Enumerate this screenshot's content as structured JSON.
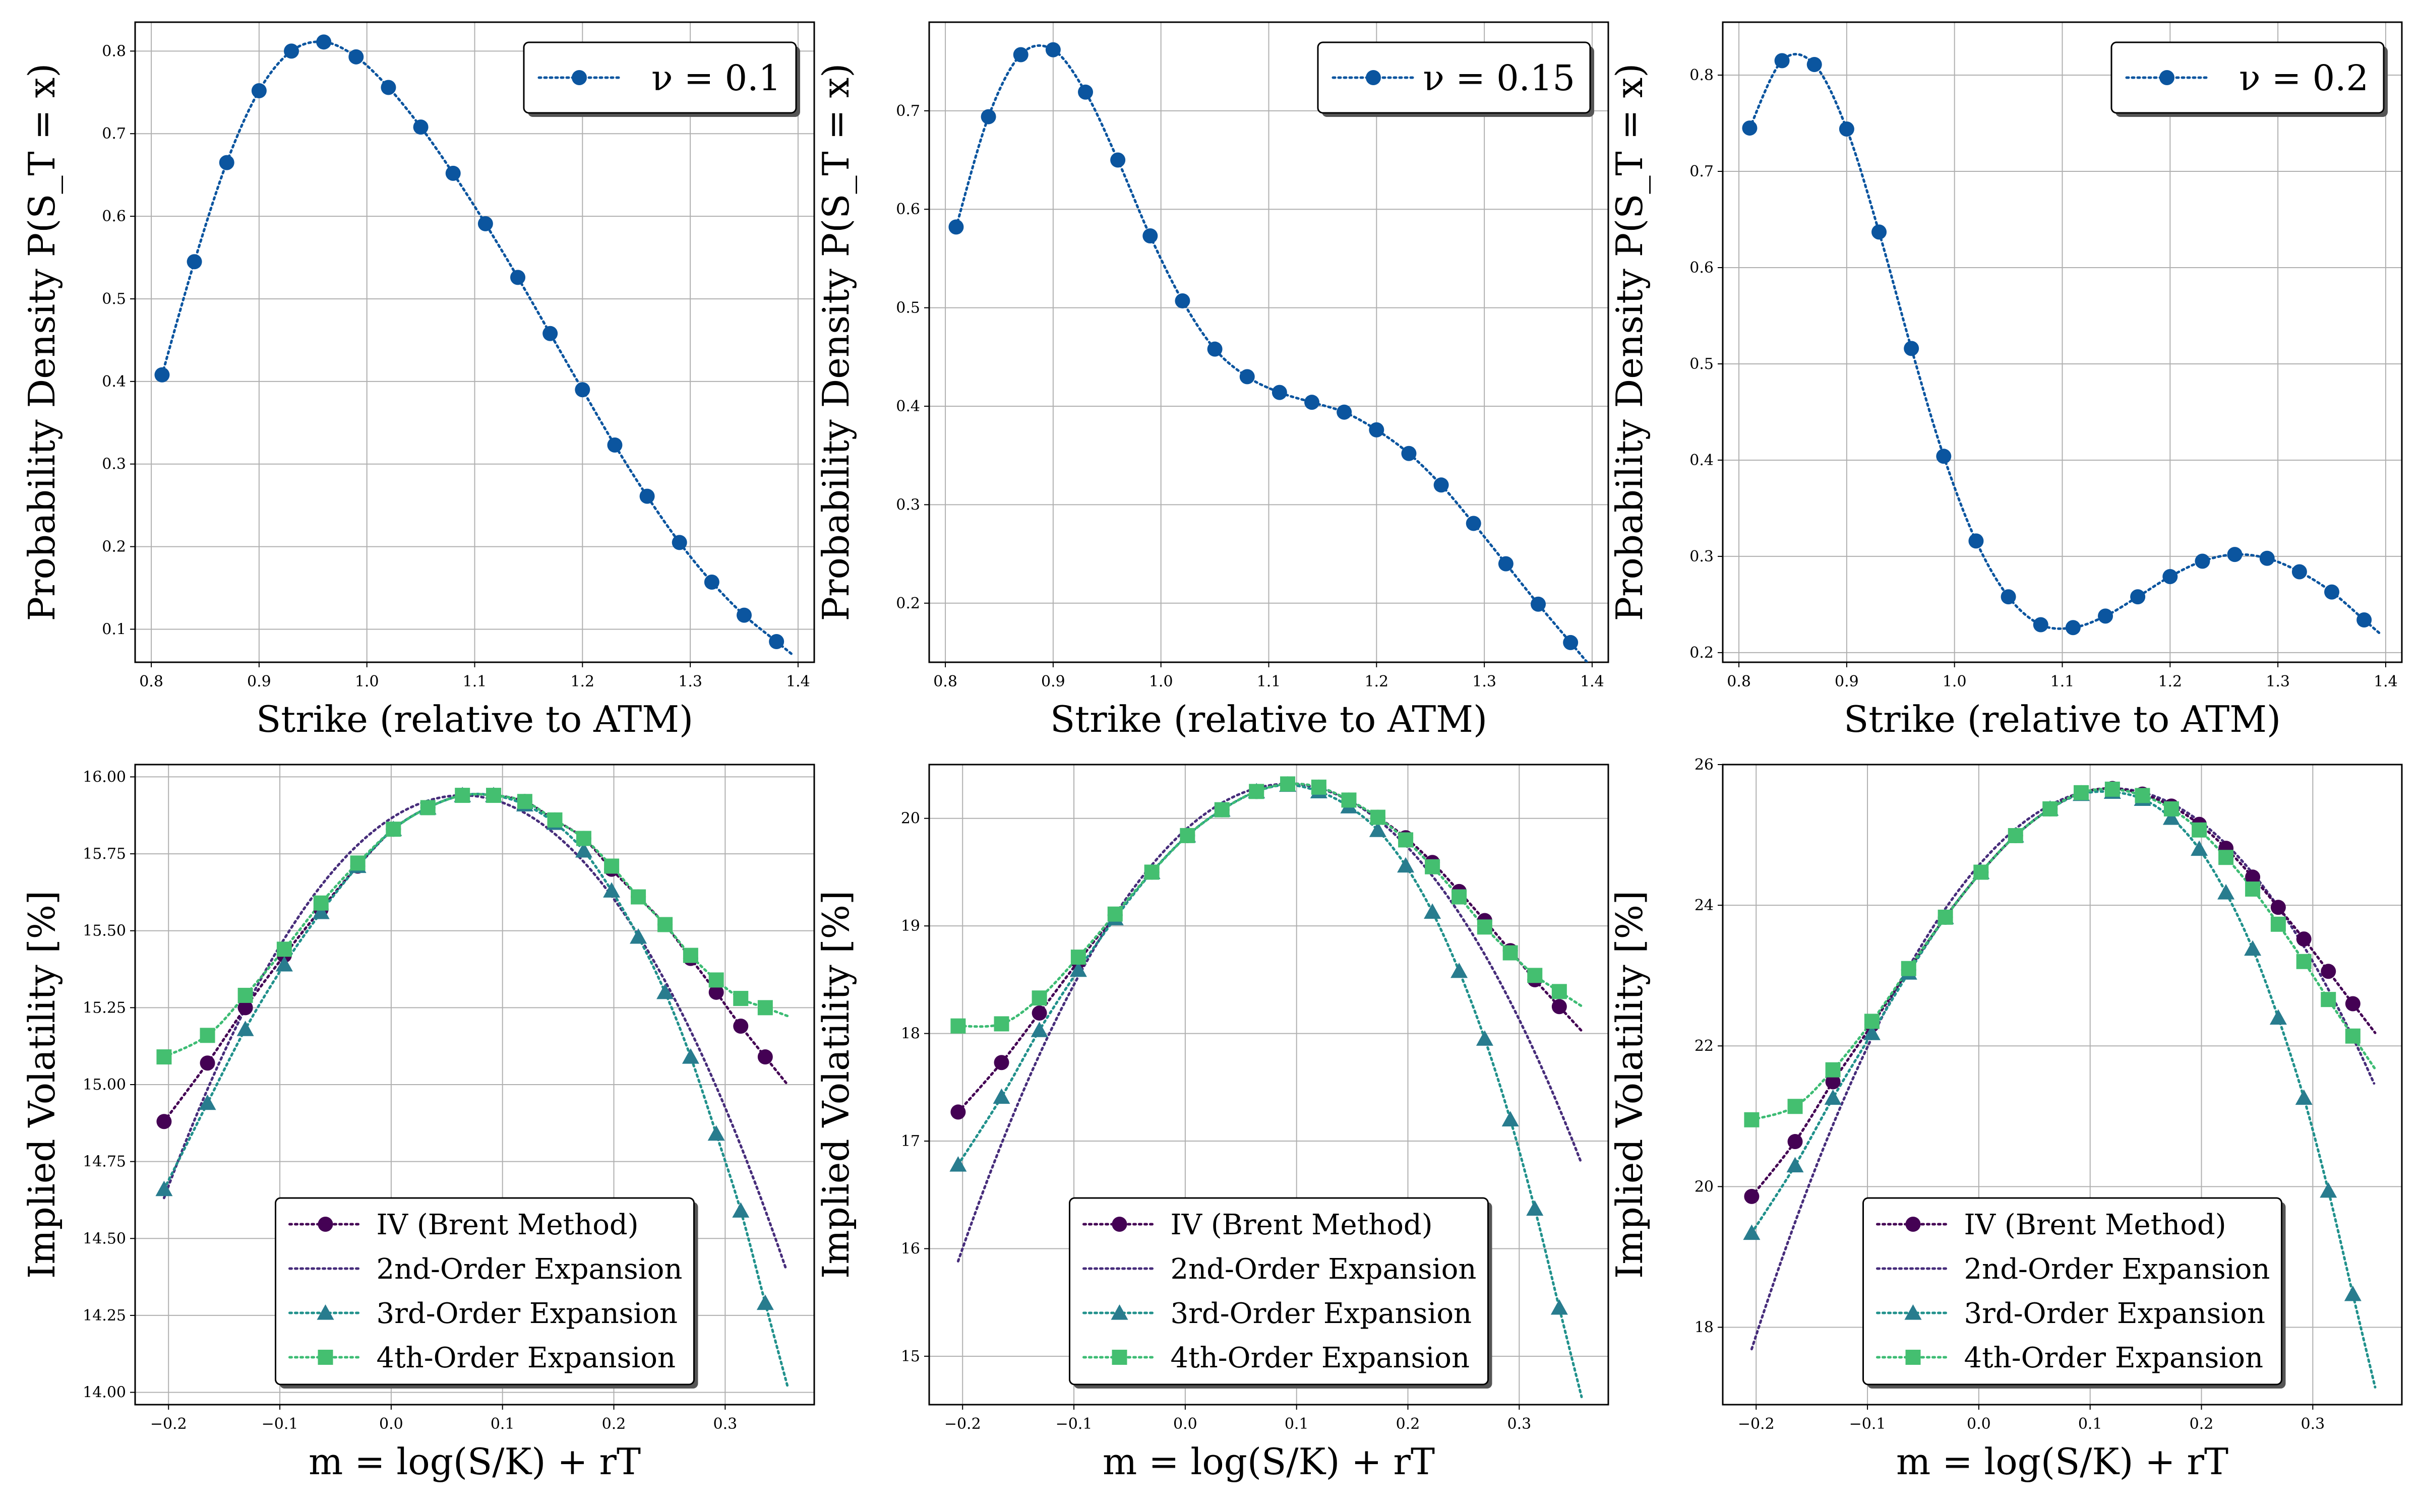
{
  "colors": {
    "density": "#0b559f",
    "iv": "#440154",
    "order2": "#472d7b",
    "order3": "#21918c",
    "order3_marker": "#287c8e",
    "order4": "#3dbc74",
    "order4_marker": "#44bf70"
  },
  "chart_data": [
    {
      "type": "line",
      "panel": "top-left",
      "legend": {
        "entries": [
          "ν = 0.1"
        ],
        "placement": "upper right"
      },
      "xlabel": "Strike (relative to ATM)",
      "ylabel": "Probability Density P(S_T = x)",
      "xlim": [
        0.785,
        1.415
      ],
      "ylim": [
        0.06,
        0.835
      ],
      "xticks": [
        "0.8",
        "0.9",
        "1.0",
        "1.1",
        "1.2",
        "1.3",
        "1.4"
      ],
      "yticks": [
        "0.1",
        "0.2",
        "0.3",
        "0.4",
        "0.5",
        "0.6",
        "0.7",
        "0.8"
      ],
      "grid": true,
      "series": [
        {
          "marker": "circle",
          "x": [
            0.81,
            0.84,
            0.87,
            0.9,
            0.93,
            0.96,
            0.99,
            1.02,
            1.05,
            1.08,
            1.11,
            1.14,
            1.17,
            1.2,
            1.23,
            1.26,
            1.29,
            1.32,
            1.35,
            1.38
          ],
          "y": [
            0.408,
            0.545,
            0.665,
            0.752,
            0.8,
            0.811,
            0.793,
            0.756,
            0.708,
            0.652,
            0.591,
            0.526,
            0.458,
            0.39,
            0.323,
            0.261,
            0.205,
            0.157,
            0.117,
            0.085
          ]
        }
      ]
    },
    {
      "type": "line",
      "panel": "top-middle",
      "legend": {
        "entries": [
          "ν = 0.15"
        ],
        "placement": "upper right"
      },
      "xlabel": "Strike (relative to ATM)",
      "ylabel": "Probability Density P(S_T = x)",
      "xlim": [
        0.785,
        1.415
      ],
      "ylim": [
        0.14,
        0.79
      ],
      "xticks": [
        "0.8",
        "0.9",
        "1.0",
        "1.1",
        "1.2",
        "1.3",
        "1.4"
      ],
      "yticks": [
        "0.2",
        "0.3",
        "0.4",
        "0.5",
        "0.6",
        "0.7"
      ],
      "grid": true,
      "series": [
        {
          "marker": "circle",
          "x": [
            0.81,
            0.84,
            0.87,
            0.9,
            0.93,
            0.96,
            0.99,
            1.02,
            1.05,
            1.08,
            1.11,
            1.14,
            1.17,
            1.2,
            1.23,
            1.26,
            1.29,
            1.32,
            1.35,
            1.38
          ],
          "y": [
            0.582,
            0.694,
            0.757,
            0.762,
            0.719,
            0.65,
            0.573,
            0.507,
            0.458,
            0.43,
            0.414,
            0.404,
            0.394,
            0.376,
            0.352,
            0.32,
            0.281,
            0.24,
            0.199,
            0.16
          ]
        }
      ]
    },
    {
      "type": "line",
      "panel": "top-right",
      "legend": {
        "entries": [
          "ν = 0.2"
        ],
        "placement": "upper right"
      },
      "xlabel": "Strike (relative to ATM)",
      "ylabel": "Probability Density P(S_T = x)",
      "xlim": [
        0.785,
        1.415
      ],
      "ylim": [
        0.19,
        0.855
      ],
      "xticks": [
        "0.8",
        "0.9",
        "1.0",
        "1.1",
        "1.2",
        "1.3",
        "1.4"
      ],
      "yticks": [
        "0.2",
        "0.3",
        "0.4",
        "0.5",
        "0.6",
        "0.7",
        "0.8"
      ],
      "grid": true,
      "series": [
        {
          "marker": "circle",
          "x": [
            0.81,
            0.84,
            0.87,
            0.9,
            0.93,
            0.96,
            0.99,
            1.02,
            1.05,
            1.08,
            1.11,
            1.14,
            1.17,
            1.2,
            1.23,
            1.26,
            1.29,
            1.32,
            1.35,
            1.38
          ],
          "y": [
            0.745,
            0.815,
            0.811,
            0.744,
            0.637,
            0.516,
            0.404,
            0.316,
            0.258,
            0.229,
            0.226,
            0.238,
            0.258,
            0.279,
            0.295,
            0.302,
            0.298,
            0.284,
            0.263,
            0.234
          ]
        }
      ]
    },
    {
      "type": "line",
      "panel": "bottom-left",
      "xlabel": "m = log(S/K) + rT",
      "ylabel": "Implied Volatility [%]",
      "xlim": [
        -0.23,
        0.38
      ],
      "ylim": [
        13.96,
        16.04
      ],
      "xticks": [
        "−0.2",
        "−0.1",
        "0.0",
        "0.1",
        "0.2",
        "0.3"
      ],
      "yticks": [
        "14.00",
        "14.25",
        "14.50",
        "14.75",
        "15.00",
        "15.25",
        "15.50",
        "15.75",
        "16.00"
      ],
      "grid": true,
      "legend": {
        "placement": "lower center",
        "entries": [
          "IV (Brent Method)",
          "2nd-Order Expansion",
          "3rd-Order Expansion",
          "4th-Order Expansion"
        ]
      },
      "series": [
        {
          "name": "IV (Brent Method)",
          "marker": "circle",
          "x": [
            -0.204,
            -0.165,
            -0.131,
            -0.096,
            -0.063,
            -0.03,
            0.002,
            0.033,
            0.064,
            0.092,
            0.12,
            0.147,
            0.173,
            0.198,
            0.222,
            0.246,
            0.269,
            0.292,
            0.314,
            0.336
          ],
          "y": [
            14.88,
            15.07,
            15.25,
            15.42,
            15.57,
            15.71,
            15.83,
            15.9,
            15.94,
            15.94,
            15.92,
            15.86,
            15.8,
            15.7,
            15.61,
            15.52,
            15.41,
            15.3,
            15.19,
            15.09
          ]
        },
        {
          "name": "2nd-Order Expansion",
          "marker": "none",
          "x_range": [
            -0.204,
            0.355
          ],
          "y_at_ends": [
            14.44,
            14.56
          ]
        },
        {
          "name": "3rd-Order Expansion",
          "marker": "triangle",
          "x": [
            -0.204,
            -0.165,
            -0.131,
            -0.096,
            -0.063,
            -0.03,
            0.002,
            0.033,
            0.064,
            0.092,
            0.12,
            0.147,
            0.173,
            0.198,
            0.222,
            0.246,
            0.269,
            0.292,
            0.314,
            0.336
          ],
          "y": [
            14.66,
            14.94,
            15.18,
            15.39,
            15.56,
            15.71,
            15.83,
            15.9,
            15.94,
            15.94,
            15.91,
            15.85,
            15.76,
            15.63,
            15.48,
            15.3,
            15.09,
            14.84,
            14.59,
            14.29
          ]
        },
        {
          "name": "4th-Order Expansion",
          "marker": "square",
          "x": [
            -0.204,
            -0.165,
            -0.131,
            -0.096,
            -0.063,
            -0.03,
            0.002,
            0.033,
            0.064,
            0.092,
            0.12,
            0.147,
            0.173,
            0.198,
            0.222,
            0.246,
            0.269,
            0.292,
            0.314,
            0.336
          ],
          "y": [
            15.09,
            15.16,
            15.29,
            15.44,
            15.59,
            15.72,
            15.83,
            15.9,
            15.94,
            15.94,
            15.92,
            15.86,
            15.8,
            15.71,
            15.61,
            15.52,
            15.42,
            15.34,
            15.28,
            15.25
          ]
        }
      ]
    },
    {
      "type": "line",
      "panel": "bottom-middle",
      "xlabel": "m = log(S/K) + rT",
      "ylabel": "Implied Volatility [%]",
      "xlim": [
        -0.23,
        0.38
      ],
      "ylim": [
        14.55,
        20.5
      ],
      "xticks": [
        "−0.2",
        "−0.1",
        "0.0",
        "0.1",
        "0.2",
        "0.3"
      ],
      "yticks": [
        "15",
        "16",
        "17",
        "18",
        "19",
        "20"
      ],
      "grid": true,
      "legend": {
        "placement": "lower center",
        "entries": [
          "IV (Brent Method)",
          "2nd-Order Expansion",
          "3rd-Order Expansion",
          "4th-Order Expansion"
        ]
      },
      "series": [
        {
          "name": "IV (Brent Method)",
          "marker": "circle",
          "x": [
            -0.204,
            -0.165,
            -0.131,
            -0.096,
            -0.063,
            -0.03,
            0.002,
            0.033,
            0.064,
            0.092,
            0.12,
            0.147,
            0.173,
            0.198,
            0.222,
            0.246,
            0.269,
            0.292,
            0.314,
            0.336
          ],
          "y": [
            17.27,
            17.73,
            18.19,
            18.67,
            19.1,
            19.5,
            19.84,
            20.08,
            20.25,
            20.32,
            20.29,
            20.17,
            20.01,
            19.82,
            19.59,
            19.32,
            19.05,
            18.77,
            18.5,
            18.25
          ]
        },
        {
          "name": "2nd-Order Expansion",
          "marker": "none",
          "x_range": [
            -0.204,
            0.355
          ],
          "y_at_ends": [
            15.7,
            17.05
          ]
        },
        {
          "name": "3rd-Order Expansion",
          "marker": "triangle",
          "x": [
            -0.204,
            -0.165,
            -0.131,
            -0.096,
            -0.063,
            -0.03,
            0.002,
            0.033,
            0.064,
            0.092,
            0.12,
            0.147,
            0.173,
            0.198,
            0.222,
            0.246,
            0.269,
            0.292,
            0.314,
            0.336
          ],
          "y": [
            16.78,
            17.41,
            18.03,
            18.59,
            19.07,
            19.5,
            19.84,
            20.08,
            20.25,
            20.31,
            20.25,
            20.11,
            19.89,
            19.56,
            19.13,
            18.58,
            17.95,
            17.2,
            16.37,
            15.45
          ]
        },
        {
          "name": "4th-Order Expansion",
          "marker": "square",
          "x": [
            -0.204,
            -0.165,
            -0.131,
            -0.096,
            -0.063,
            -0.03,
            0.002,
            0.033,
            0.064,
            0.092,
            0.12,
            0.147,
            0.173,
            0.198,
            0.222,
            0.246,
            0.269,
            0.292,
            0.314,
            0.336
          ],
          "y": [
            18.07,
            18.09,
            18.33,
            18.71,
            19.11,
            19.5,
            19.84,
            20.08,
            20.25,
            20.32,
            20.29,
            20.17,
            20.01,
            19.8,
            19.55,
            19.27,
            18.99,
            18.75,
            18.54,
            18.39
          ]
        }
      ]
    },
    {
      "type": "line",
      "panel": "bottom-right",
      "xlabel": "m = log(S/K) + rT",
      "ylabel": "Implied Volatility [%]",
      "xlim": [
        -0.23,
        0.38
      ],
      "ylim": [
        16.9,
        26.0
      ],
      "xticks": [
        "−0.2",
        "−0.1",
        "0.0",
        "0.1",
        "0.2",
        "0.3"
      ],
      "yticks": [
        "18",
        "20",
        "22",
        "24",
        "26"
      ],
      "grid": true,
      "legend": {
        "placement": "lower center",
        "entries": [
          "IV (Brent Method)",
          "2nd-Order Expansion",
          "3rd-Order Expansion",
          "4th-Order Expansion"
        ]
      },
      "series": [
        {
          "name": "IV (Brent Method)",
          "marker": "circle",
          "x": [
            -0.204,
            -0.165,
            -0.131,
            -0.096,
            -0.063,
            -0.03,
            0.002,
            0.033,
            0.064,
            0.092,
            0.12,
            0.147,
            0.173,
            0.198,
            0.222,
            0.246,
            0.269,
            0.292,
            0.314,
            0.336
          ],
          "y": [
            19.86,
            20.64,
            21.49,
            22.3,
            23.08,
            23.83,
            24.47,
            24.99,
            25.37,
            25.6,
            25.66,
            25.58,
            25.41,
            25.15,
            24.81,
            24.4,
            23.97,
            23.52,
            23.06,
            22.6
          ]
        },
        {
          "name": "2nd-Order Expansion",
          "marker": "none",
          "x_range": [
            -0.204,
            0.355
          ],
          "y_at_ends": [
            17.2,
            22.4
          ]
        },
        {
          "name": "3rd-Order Expansion",
          "marker": "triangle",
          "x": [
            -0.204,
            -0.165,
            -0.131,
            -0.096,
            -0.063,
            -0.03,
            0.002,
            0.033,
            0.064,
            0.092,
            0.12,
            0.147,
            0.173,
            0.198,
            0.222,
            0.246,
            0.269,
            0.292,
            0.314,
            0.336
          ],
          "y": [
            19.34,
            20.3,
            21.26,
            22.18,
            23.04,
            23.83,
            24.47,
            24.99,
            25.37,
            25.58,
            25.61,
            25.51,
            25.24,
            24.8,
            24.18,
            23.38,
            22.4,
            21.26,
            19.94,
            18.47
          ]
        },
        {
          "name": "4th-Order Expansion",
          "marker": "square",
          "x": [
            -0.204,
            -0.165,
            -0.131,
            -0.096,
            -0.063,
            -0.03,
            0.002,
            0.033,
            0.064,
            0.092,
            0.12,
            0.147,
            0.173,
            0.198,
            0.222,
            0.246,
            0.269,
            0.292,
            0.314,
            0.336
          ],
          "y": [
            20.95,
            21.14,
            21.66,
            22.35,
            23.1,
            23.83,
            24.47,
            24.99,
            25.37,
            25.6,
            25.65,
            25.56,
            25.37,
            25.07,
            24.68,
            24.23,
            23.73,
            23.2,
            22.66,
            22.14
          ]
        }
      ]
    }
  ]
}
